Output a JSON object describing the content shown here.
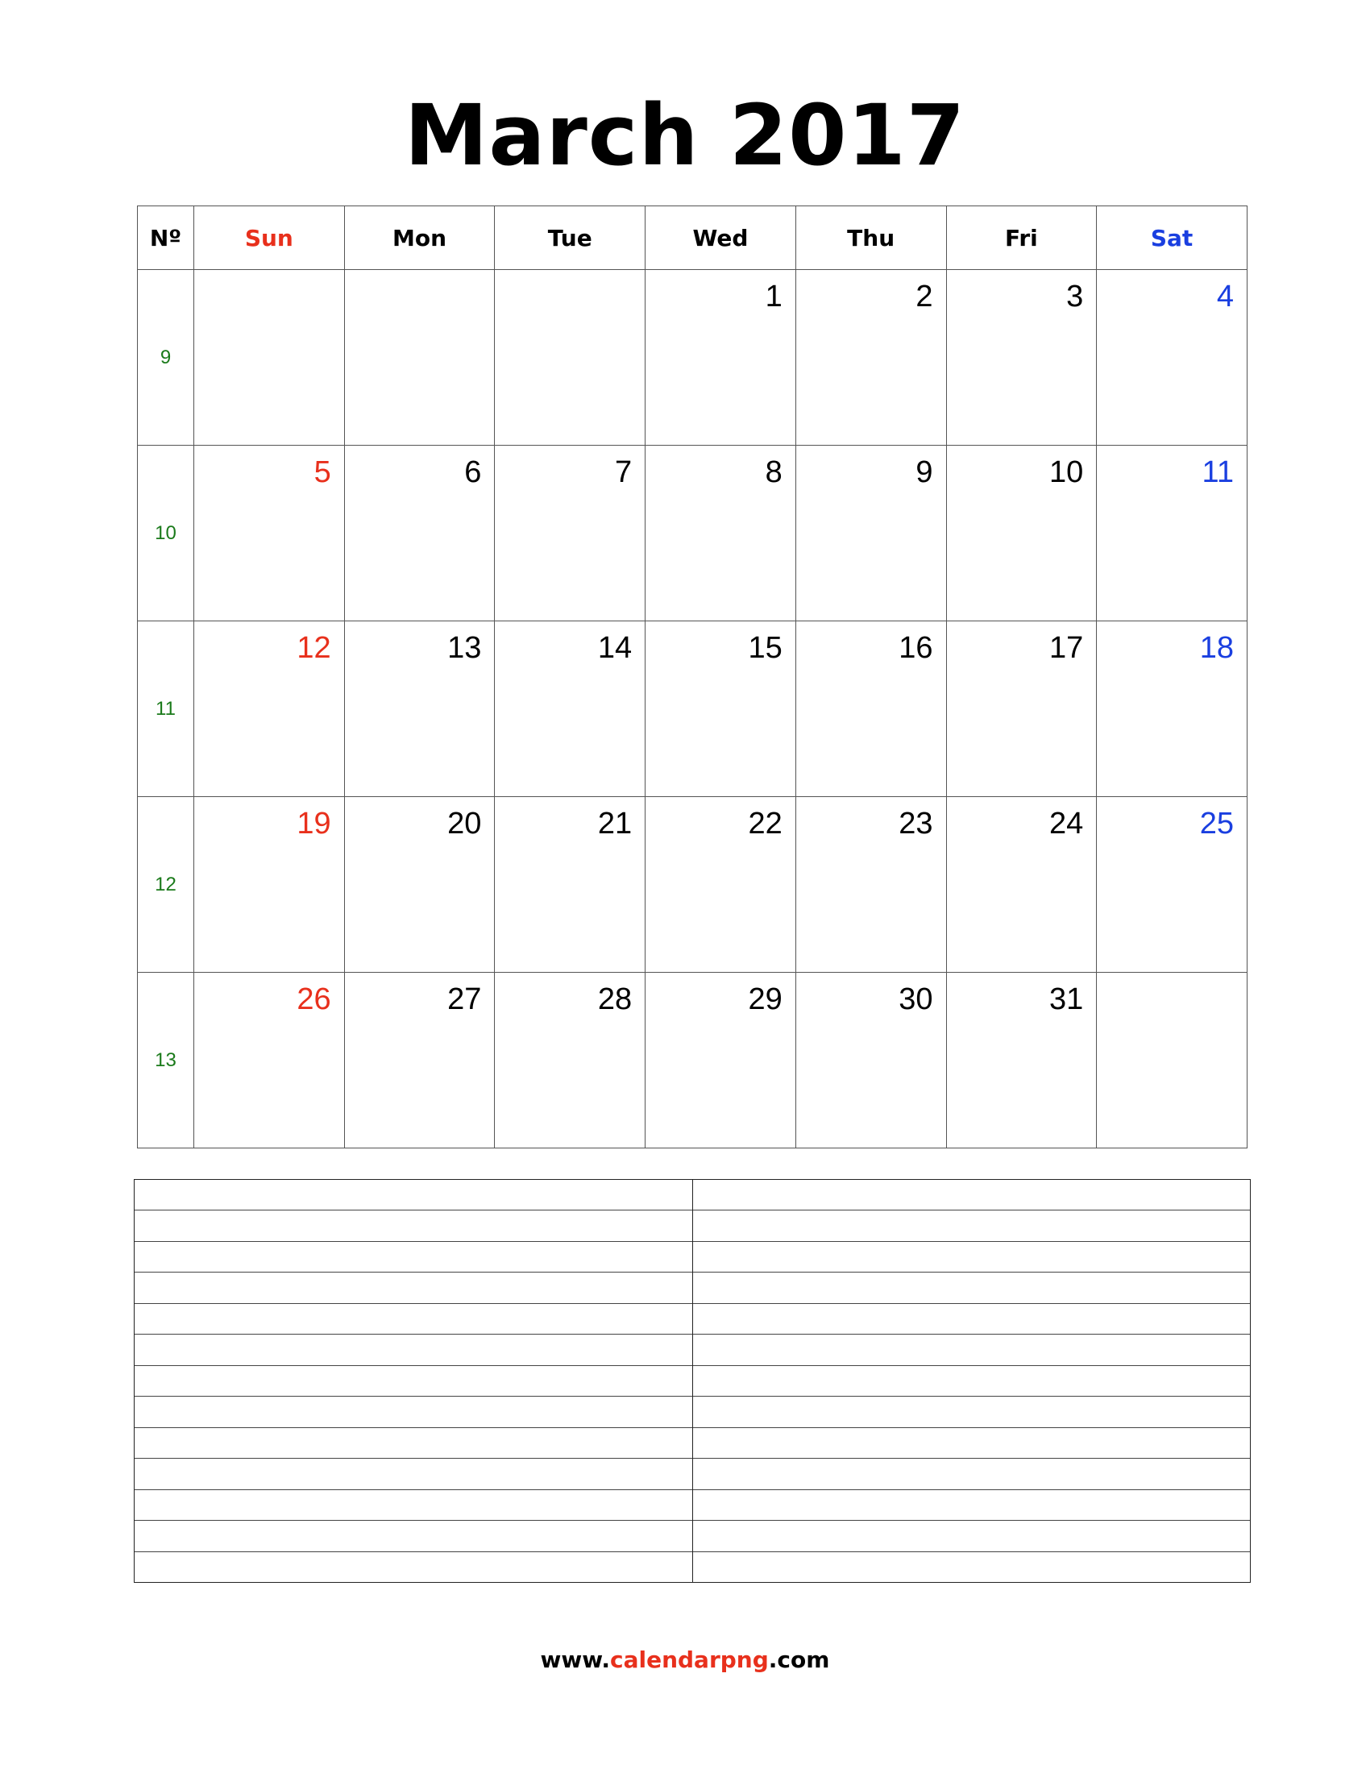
{
  "title": "March 2017",
  "colors": {
    "sunday": "#e8301c",
    "saturday": "#1a3fe0",
    "week_number": "#1a7a1a"
  },
  "header": {
    "week_no": "Nº",
    "days": [
      "Sun",
      "Mon",
      "Tue",
      "Wed",
      "Thu",
      "Fri",
      "Sat"
    ]
  },
  "weeks": [
    {
      "number": "9",
      "days": [
        "",
        "",
        "",
        "1",
        "2",
        "3",
        "4"
      ]
    },
    {
      "number": "10",
      "days": [
        "5",
        "6",
        "7",
        "8",
        "9",
        "10",
        "11"
      ]
    },
    {
      "number": "11",
      "days": [
        "12",
        "13",
        "14",
        "15",
        "16",
        "17",
        "18"
      ]
    },
    {
      "number": "12",
      "days": [
        "19",
        "20",
        "21",
        "22",
        "23",
        "24",
        "25"
      ]
    },
    {
      "number": "13",
      "days": [
        "26",
        "27",
        "28",
        "29",
        "30",
        "31",
        ""
      ]
    }
  ],
  "notes": {
    "columns": 2,
    "lines_per_column": 13
  },
  "footer": {
    "prefix": "www.",
    "brand": "calendarpng",
    "suffix": ".com"
  }
}
